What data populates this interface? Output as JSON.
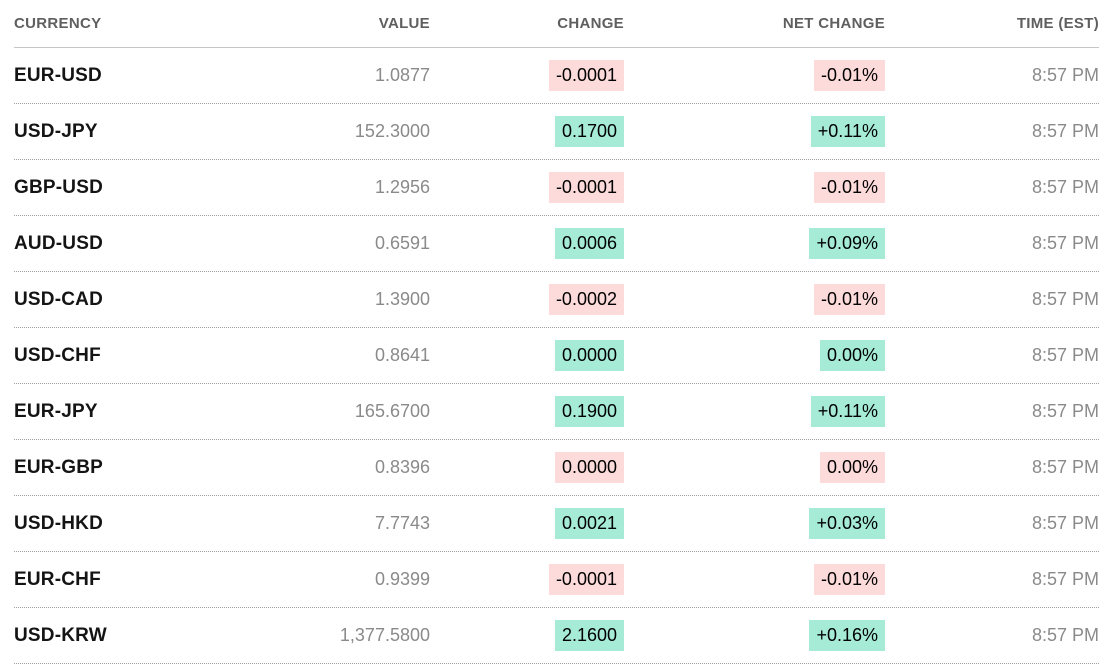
{
  "colors": {
    "up_chip_bg": "#a5ebd5",
    "down_chip_bg": "#fcdbda",
    "header_text": "#5f5f5f",
    "currency_text": "#141414",
    "muted_text": "#8a8a8a",
    "header_rule": "#c6c6c6",
    "row_rule_dotted": "#9e9e9e"
  },
  "table": {
    "columns": [
      "CURRENCY",
      "VALUE",
      "CHANGE",
      "NET CHANGE",
      "TIME (EST)"
    ],
    "rows": [
      {
        "currency": "EUR-USD",
        "value": "1.0877",
        "change": "-0.0001",
        "net_change": "-0.01%",
        "time": "8:57 PM",
        "direction": "down"
      },
      {
        "currency": "USD-JPY",
        "value": "152.3000",
        "change": "0.1700",
        "net_change": "+0.11%",
        "time": "8:57 PM",
        "direction": "up"
      },
      {
        "currency": "GBP-USD",
        "value": "1.2956",
        "change": "-0.0001",
        "net_change": "-0.01%",
        "time": "8:57 PM",
        "direction": "down"
      },
      {
        "currency": "AUD-USD",
        "value": "0.6591",
        "change": "0.0006",
        "net_change": "+0.09%",
        "time": "8:57 PM",
        "direction": "up"
      },
      {
        "currency": "USD-CAD",
        "value": "1.3900",
        "change": "-0.0002",
        "net_change": "-0.01%",
        "time": "8:57 PM",
        "direction": "down"
      },
      {
        "currency": "USD-CHF",
        "value": "0.8641",
        "change": "0.0000",
        "net_change": "0.00%",
        "time": "8:57 PM",
        "direction": "up"
      },
      {
        "currency": "EUR-JPY",
        "value": "165.6700",
        "change": "0.1900",
        "net_change": "+0.11%",
        "time": "8:57 PM",
        "direction": "up"
      },
      {
        "currency": "EUR-GBP",
        "value": "0.8396",
        "change": "0.0000",
        "net_change": "0.00%",
        "time": "8:57 PM",
        "direction": "down"
      },
      {
        "currency": "USD-HKD",
        "value": "7.7743",
        "change": "0.0021",
        "net_change": "+0.03%",
        "time": "8:57 PM",
        "direction": "up"
      },
      {
        "currency": "EUR-CHF",
        "value": "0.9399",
        "change": "-0.0001",
        "net_change": "-0.01%",
        "time": "8:57 PM",
        "direction": "down"
      },
      {
        "currency": "USD-KRW",
        "value": "1,377.5800",
        "change": "2.1600",
        "net_change": "+0.16%",
        "time": "8:57 PM",
        "direction": "up"
      }
    ]
  },
  "chart_data": {
    "type": "table",
    "title": "",
    "columns": [
      "CURRENCY",
      "VALUE",
      "CHANGE",
      "NET CHANGE",
      "TIME (EST)"
    ],
    "rows": [
      [
        "EUR-USD",
        "1.0877",
        "-0.0001",
        "-0.01%",
        "8:57 PM"
      ],
      [
        "USD-JPY",
        "152.3000",
        "0.1700",
        "+0.11%",
        "8:57 PM"
      ],
      [
        "GBP-USD",
        "1.2956",
        "-0.0001",
        "-0.01%",
        "8:57 PM"
      ],
      [
        "AUD-USD",
        "0.6591",
        "0.0006",
        "+0.09%",
        "8:57 PM"
      ],
      [
        "USD-CAD",
        "1.3900",
        "-0.0002",
        "-0.01%",
        "8:57 PM"
      ],
      [
        "USD-CHF",
        "0.8641",
        "0.0000",
        "0.00%",
        "8:57 PM"
      ],
      [
        "EUR-JPY",
        "165.6700",
        "0.1900",
        "+0.11%",
        "8:57 PM"
      ],
      [
        "EUR-GBP",
        "0.8396",
        "0.0000",
        "0.00%",
        "8:57 PM"
      ],
      [
        "USD-HKD",
        "7.7743",
        "0.0021",
        "+0.03%",
        "8:57 PM"
      ],
      [
        "EUR-CHF",
        "0.9399",
        "-0.0001",
        "-0.01%",
        "8:57 PM"
      ],
      [
        "USD-KRW",
        "1,377.5800",
        "2.1600",
        "+0.16%",
        "8:57 PM"
      ]
    ]
  }
}
